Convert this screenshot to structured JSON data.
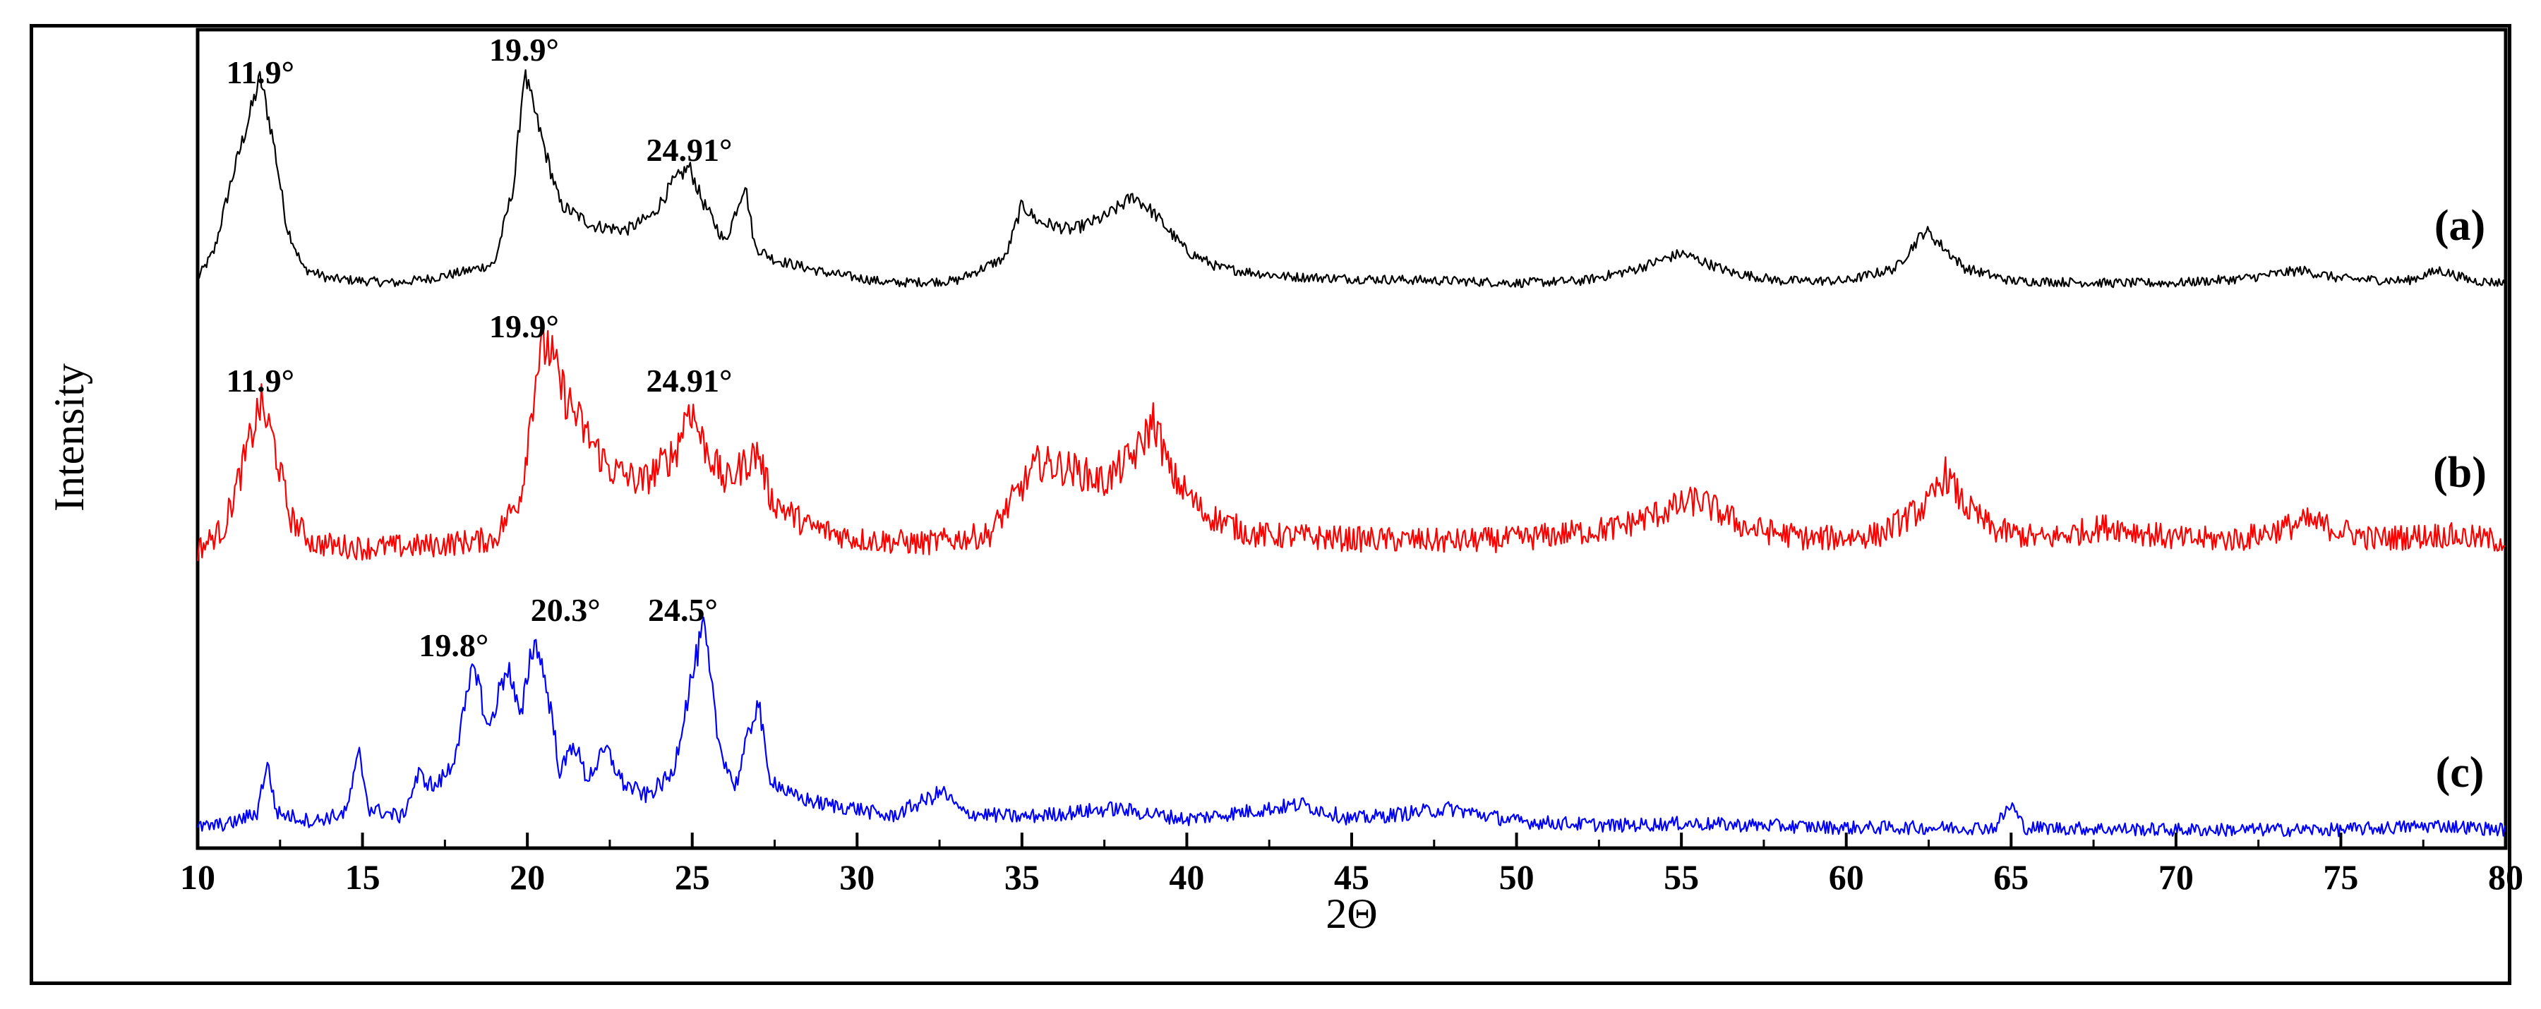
{
  "chart_data": {
    "type": "line",
    "title": "",
    "xlabel": "2Θ",
    "ylabel": "Intensity",
    "xlim": [
      10,
      80
    ],
    "x_ticks": [
      "10",
      "15",
      "20",
      "25",
      "30",
      "35",
      "40",
      "45",
      "50",
      "55",
      "60",
      "65",
      "70",
      "75",
      "80"
    ],
    "grid": false,
    "legend": "none",
    "series": [
      {
        "name": "(a)",
        "color": "#000000",
        "baseline": 0.05,
        "points": [
          [
            10,
            0.05
          ],
          [
            10.5,
            0.18
          ],
          [
            11,
            0.5
          ],
          [
            11.5,
            0.78
          ],
          [
            11.9,
            1.0
          ],
          [
            12.3,
            0.7
          ],
          [
            12.7,
            0.3
          ],
          [
            13.2,
            0.1
          ],
          [
            14,
            0.05
          ],
          [
            15,
            0.04
          ],
          [
            16,
            0.03
          ],
          [
            17,
            0.05
          ],
          [
            18,
            0.08
          ],
          [
            19,
            0.12
          ],
          [
            19.6,
            0.5
          ],
          [
            19.9,
            1.02
          ],
          [
            20.2,
            0.85
          ],
          [
            20.6,
            0.62
          ],
          [
            21,
            0.4
          ],
          [
            22,
            0.3
          ],
          [
            23,
            0.28
          ],
          [
            23.8,
            0.35
          ],
          [
            24.4,
            0.5
          ],
          [
            24.91,
            0.58
          ],
          [
            25.3,
            0.42
          ],
          [
            26,
            0.22
          ],
          [
            26.6,
            0.5
          ],
          [
            26.9,
            0.2
          ],
          [
            27.5,
            0.14
          ],
          [
            29,
            0.08
          ],
          [
            31,
            0.03
          ],
          [
            33,
            0.04
          ],
          [
            34.5,
            0.15
          ],
          [
            35,
            0.4
          ],
          [
            35.5,
            0.32
          ],
          [
            36.5,
            0.28
          ],
          [
            37.5,
            0.34
          ],
          [
            38.4,
            0.44
          ],
          [
            39,
            0.36
          ],
          [
            40,
            0.18
          ],
          [
            41,
            0.1
          ],
          [
            43,
            0.06
          ],
          [
            45,
            0.05
          ],
          [
            48,
            0.04
          ],
          [
            50,
            0.03
          ],
          [
            52,
            0.04
          ],
          [
            53.5,
            0.09
          ],
          [
            55,
            0.17
          ],
          [
            56.5,
            0.08
          ],
          [
            58,
            0.04
          ],
          [
            60,
            0.04
          ],
          [
            61.5,
            0.1
          ],
          [
            62.4,
            0.28
          ],
          [
            62.8,
            0.22
          ],
          [
            63.6,
            0.1
          ],
          [
            65,
            0.04
          ],
          [
            68,
            0.03
          ],
          [
            70,
            0.03
          ],
          [
            72,
            0.05
          ],
          [
            73.8,
            0.09
          ],
          [
            75,
            0.05
          ],
          [
            77,
            0.04
          ],
          [
            78,
            0.09
          ],
          [
            79,
            0.04
          ],
          [
            80,
            0.03
          ]
        ],
        "peak_labels": [
          {
            "x": 11.9,
            "text": "11.9°"
          },
          {
            "x": 19.9,
            "text": "19.9°"
          },
          {
            "x": 24.91,
            "text": "24.91°"
          }
        ]
      },
      {
        "name": "(b)",
        "color": "#ff0000",
        "baseline": 0.05,
        "points": [
          [
            10,
            0.05
          ],
          [
            10.8,
            0.15
          ],
          [
            11.4,
            0.45
          ],
          [
            11.9,
            0.72
          ],
          [
            12.3,
            0.55
          ],
          [
            12.8,
            0.2
          ],
          [
            13.5,
            0.08
          ],
          [
            15,
            0.06
          ],
          [
            17,
            0.07
          ],
          [
            19,
            0.1
          ],
          [
            19.8,
            0.3
          ],
          [
            20.3,
            0.9
          ],
          [
            20.6,
            1.0
          ],
          [
            21,
            0.8
          ],
          [
            21.7,
            0.6
          ],
          [
            22.5,
            0.42
          ],
          [
            23.5,
            0.36
          ],
          [
            24.5,
            0.5
          ],
          [
            24.91,
            0.72
          ],
          [
            25.3,
            0.55
          ],
          [
            26,
            0.36
          ],
          [
            27,
            0.5
          ],
          [
            27.4,
            0.28
          ],
          [
            28.5,
            0.16
          ],
          [
            30,
            0.1
          ],
          [
            32,
            0.08
          ],
          [
            34,
            0.12
          ],
          [
            35.5,
            0.45
          ],
          [
            36.5,
            0.42
          ],
          [
            37.5,
            0.36
          ],
          [
            38.5,
            0.5
          ],
          [
            39,
            0.65
          ],
          [
            39.5,
            0.4
          ],
          [
            40.5,
            0.22
          ],
          [
            42,
            0.12
          ],
          [
            45,
            0.1
          ],
          [
            48,
            0.09
          ],
          [
            50,
            0.1
          ],
          [
            53,
            0.15
          ],
          [
            55.5,
            0.28
          ],
          [
            57,
            0.15
          ],
          [
            59,
            0.1
          ],
          [
            61,
            0.12
          ],
          [
            62.5,
            0.26
          ],
          [
            63,
            0.4
          ],
          [
            63.6,
            0.25
          ],
          [
            64.5,
            0.14
          ],
          [
            66,
            0.1
          ],
          [
            68,
            0.16
          ],
          [
            70,
            0.1
          ],
          [
            72,
            0.1
          ],
          [
            74,
            0.18
          ],
          [
            76,
            0.1
          ],
          [
            78,
            0.12
          ],
          [
            80,
            0.09
          ]
        ],
        "peak_labels": [
          {
            "x": 11.9,
            "text": "11.9°"
          },
          {
            "x": 19.9,
            "text": "19.9°"
          },
          {
            "x": 24.91,
            "text": "24.91°"
          }
        ]
      },
      {
        "name": "(c)",
        "color": "#0000ff",
        "baseline": 0.05,
        "points": [
          [
            10,
            0.05
          ],
          [
            11,
            0.07
          ],
          [
            11.8,
            0.12
          ],
          [
            12.1,
            0.36
          ],
          [
            12.4,
            0.12
          ],
          [
            13.5,
            0.08
          ],
          [
            14.5,
            0.12
          ],
          [
            14.9,
            0.4
          ],
          [
            15.2,
            0.14
          ],
          [
            16.2,
            0.1
          ],
          [
            16.7,
            0.3
          ],
          [
            17.2,
            0.24
          ],
          [
            17.7,
            0.34
          ],
          [
            18.1,
            0.6
          ],
          [
            18.4,
            0.84
          ],
          [
            18.8,
            0.5
          ],
          [
            19.2,
            0.72
          ],
          [
            19.4,
            0.82
          ],
          [
            19.8,
            0.55
          ],
          [
            20.1,
            0.88
          ],
          [
            20.3,
            0.92
          ],
          [
            20.7,
            0.62
          ],
          [
            21,
            0.3
          ],
          [
            21.4,
            0.46
          ],
          [
            21.8,
            0.28
          ],
          [
            22.4,
            0.42
          ],
          [
            22.9,
            0.26
          ],
          [
            23.6,
            0.2
          ],
          [
            24.4,
            0.3
          ],
          [
            24.9,
            0.7
          ],
          [
            25.35,
            1.0
          ],
          [
            25.8,
            0.45
          ],
          [
            26.3,
            0.24
          ],
          [
            27,
            0.66
          ],
          [
            27.3,
            0.3
          ],
          [
            28,
            0.2
          ],
          [
            29,
            0.16
          ],
          [
            30,
            0.14
          ],
          [
            31,
            0.1
          ],
          [
            32.6,
            0.22
          ],
          [
            33.2,
            0.12
          ],
          [
            35,
            0.1
          ],
          [
            37.8,
            0.14
          ],
          [
            40,
            0.09
          ],
          [
            43.5,
            0.16
          ],
          [
            45,
            0.09
          ],
          [
            48,
            0.14
          ],
          [
            50,
            0.08
          ],
          [
            53,
            0.06
          ],
          [
            55,
            0.07
          ],
          [
            60,
            0.05
          ],
          [
            64.5,
            0.05
          ],
          [
            65,
            0.16
          ],
          [
            65.4,
            0.05
          ],
          [
            70,
            0.04
          ],
          [
            75,
            0.04
          ],
          [
            78,
            0.06
          ],
          [
            80,
            0.04
          ]
        ],
        "peak_labels": [
          {
            "x": 19.8,
            "text": "19.8°"
          },
          {
            "x": 20.3,
            "text": "20.3°"
          },
          {
            "x": 24.5,
            "text": "24.5°"
          }
        ]
      }
    ]
  }
}
